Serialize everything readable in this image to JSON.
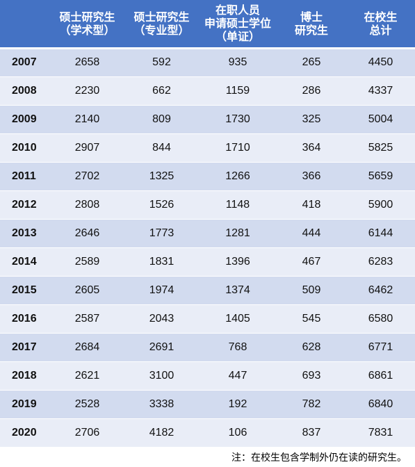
{
  "chart_data": {
    "type": "table",
    "columns": [
      {
        "key": "year",
        "lines": []
      },
      {
        "key": "master_academic",
        "lines": [
          "硕士研究生",
          "（学术型）"
        ]
      },
      {
        "key": "master_professional",
        "lines": [
          "硕士研究生",
          "（专业型）"
        ]
      },
      {
        "key": "in_service",
        "lines": [
          "在职人员",
          "申请硕士学位",
          "（单证）"
        ]
      },
      {
        "key": "doctoral",
        "lines": [
          "博士",
          "研究生"
        ]
      },
      {
        "key": "total",
        "lines": [
          "在校生",
          "总计"
        ]
      }
    ],
    "rows": [
      [
        "2007",
        "2658",
        "592",
        "935",
        "265",
        "4450"
      ],
      [
        "2008",
        "2230",
        "662",
        "1159",
        "286",
        "4337"
      ],
      [
        "2009",
        "2140",
        "809",
        "1730",
        "325",
        "5004"
      ],
      [
        "2010",
        "2907",
        "844",
        "1710",
        "364",
        "5825"
      ],
      [
        "2011",
        "2702",
        "1325",
        "1266",
        "366",
        "5659"
      ],
      [
        "2012",
        "2808",
        "1526",
        "1148",
        "418",
        "5900"
      ],
      [
        "2013",
        "2646",
        "1773",
        "1281",
        "444",
        "6144"
      ],
      [
        "2014",
        "2589",
        "1831",
        "1396",
        "467",
        "6283"
      ],
      [
        "2015",
        "2605",
        "1974",
        "1374",
        "509",
        "6462"
      ],
      [
        "2016",
        "2587",
        "2043",
        "1405",
        "545",
        "6580"
      ],
      [
        "2017",
        "2684",
        "2691",
        "768",
        "628",
        "6771"
      ],
      [
        "2018",
        "2621",
        "3100",
        "447",
        "693",
        "6861"
      ],
      [
        "2019",
        "2528",
        "3338",
        "192",
        "782",
        "6840"
      ],
      [
        "2020",
        "2706",
        "4182",
        "106",
        "837",
        "7831"
      ]
    ],
    "note": "注：在校生包含学制外仍在读的研究生。"
  },
  "colors": {
    "header": "#4472c4",
    "row_band_dark": "#d2dbef",
    "row_band_light": "#e9edf7"
  }
}
